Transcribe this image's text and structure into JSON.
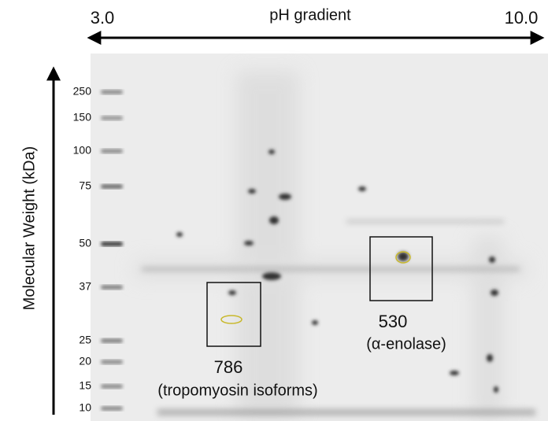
{
  "header": {
    "left_label": "3.0",
    "title": "pH gradient",
    "right_label": "10.0"
  },
  "y_axis": {
    "title": "Molecular Weight  (kDa)",
    "marker_labels": [
      "250",
      "150",
      "100",
      "75",
      "50",
      "37",
      "25",
      "20",
      "15",
      "10"
    ]
  },
  "spots": [
    {
      "id": "786",
      "name": "(tropomyosin isoforms)"
    },
    {
      "id": "530",
      "name": "(α-enolase)"
    }
  ]
}
